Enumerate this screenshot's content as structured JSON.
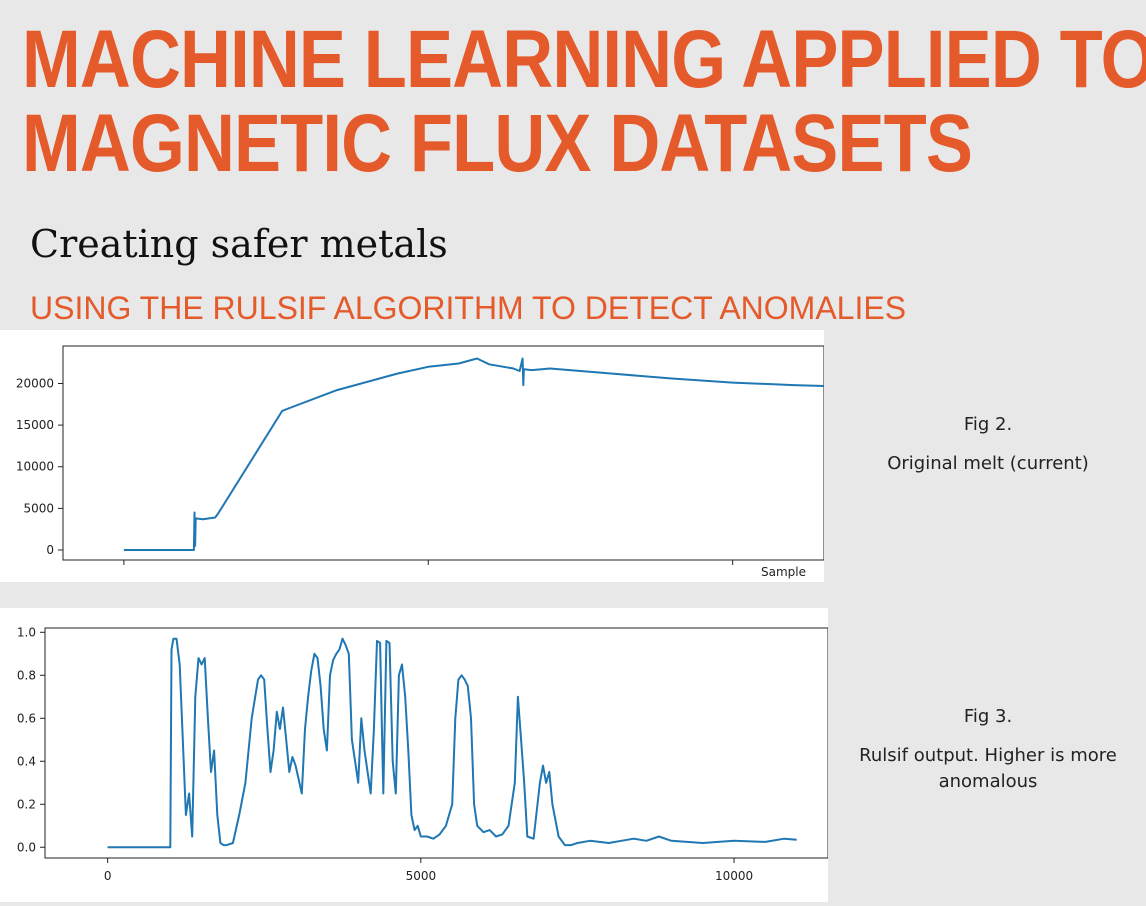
{
  "header": {
    "title_line1": "MACHINE LEARNING APPLIED TO",
    "title_line2": "MAGNETIC FLUX DATASETS",
    "subtitle": "Creating safer metals",
    "section_heading": "USING THE RULSIF ALGORITHM TO DETECT ANOMALIES"
  },
  "figures": {
    "fig2": {
      "label": "Fig 2.",
      "caption": "Original melt (current)"
    },
    "fig3": {
      "label": "Fig 3.",
      "caption": "Rulsif output. Higher is more anomalous"
    }
  },
  "colors": {
    "accent": "#e55a2b",
    "series": "#1f77b4"
  },
  "chart_data": [
    {
      "type": "line",
      "xlabel": "Sample",
      "ylabel": "",
      "xlim": [
        -1000,
        11500
      ],
      "ylim": [
        -1200,
        24500
      ],
      "yticks": [
        0,
        5000,
        10000,
        15000,
        20000
      ],
      "yticklabels": [
        "0",
        "5000",
        "10000",
        "15000",
        "20000"
      ],
      "xticks": [
        0,
        5000,
        10000
      ],
      "series": [
        {
          "x": [
            0,
            1100,
            1150,
            1160,
            1170,
            1180,
            1300,
            1500,
            1550,
            2600,
            2700,
            3500,
            4500,
            5000,
            5500,
            5800,
            6000,
            6400,
            6500,
            6550,
            6560,
            6570,
            6700,
            7000,
            8000,
            9000,
            10000,
            11000,
            11500
          ],
          "y": [
            0,
            0,
            0,
            4500,
            500,
            3800,
            3700,
            3900,
            4400,
            16700,
            17000,
            19200,
            21200,
            22000,
            22400,
            23000,
            22300,
            21800,
            21500,
            23000,
            19800,
            21700,
            21600,
            21800,
            21200,
            20600,
            20100,
            19800,
            19700
          ]
        }
      ]
    },
    {
      "type": "line",
      "xlabel": "",
      "ylabel": "",
      "xlim": [
        -1000,
        11500
      ],
      "ylim": [
        -0.05,
        1.02
      ],
      "yticks": [
        0,
        0.2,
        0.4,
        0.6,
        0.8,
        1.0
      ],
      "yticklabels": [
        "0.0",
        "0.2",
        "0.4",
        "0.6",
        "0.8",
        "1.0"
      ],
      "xticks": [
        0,
        5000,
        10000
      ],
      "xticklabels": [
        "0",
        "5000",
        "10000"
      ],
      "series": [
        {
          "x": [
            0,
            1000,
            1020,
            1050,
            1100,
            1150,
            1200,
            1250,
            1300,
            1350,
            1400,
            1450,
            1500,
            1550,
            1600,
            1650,
            1700,
            1750,
            1800,
            1850,
            1900,
            2000,
            2100,
            2200,
            2300,
            2400,
            2450,
            2500,
            2550,
            2600,
            2650,
            2700,
            2750,
            2800,
            2850,
            2900,
            2950,
            3000,
            3100,
            3150,
            3200,
            3250,
            3300,
            3350,
            3400,
            3450,
            3500,
            3550,
            3600,
            3650,
            3700,
            3750,
            3800,
            3850,
            3900,
            3950,
            4000,
            4050,
            4100,
            4150,
            4200,
            4250,
            4300,
            4350,
            4400,
            4450,
            4500,
            4550,
            4600,
            4650,
            4700,
            4750,
            4800,
            4850,
            4900,
            4950,
            5000,
            5100,
            5200,
            5300,
            5400,
            5500,
            5550,
            5600,
            5650,
            5700,
            5750,
            5800,
            5850,
            5900,
            6000,
            6100,
            6200,
            6300,
            6400,
            6500,
            6550,
            6600,
            6650,
            6700,
            6800,
            6900,
            6950,
            7000,
            7050,
            7100,
            7200,
            7300,
            7400,
            7500,
            7700,
            8000,
            8200,
            8400,
            8600,
            8800,
            9000,
            9500,
            10000,
            10500,
            10800,
            11000
          ],
          "y": [
            0,
            0,
            0.92,
            0.97,
            0.97,
            0.85,
            0.5,
            0.15,
            0.25,
            0.05,
            0.7,
            0.88,
            0.85,
            0.88,
            0.6,
            0.35,
            0.45,
            0.15,
            0.02,
            0.01,
            0.01,
            0.02,
            0.15,
            0.3,
            0.6,
            0.78,
            0.8,
            0.78,
            0.55,
            0.35,
            0.45,
            0.63,
            0.55,
            0.65,
            0.5,
            0.35,
            0.42,
            0.38,
            0.25,
            0.55,
            0.7,
            0.82,
            0.9,
            0.88,
            0.75,
            0.55,
            0.45,
            0.8,
            0.87,
            0.9,
            0.92,
            0.97,
            0.94,
            0.9,
            0.5,
            0.4,
            0.3,
            0.6,
            0.45,
            0.35,
            0.25,
            0.55,
            0.96,
            0.95,
            0.25,
            0.96,
            0.95,
            0.4,
            0.25,
            0.8,
            0.85,
            0.7,
            0.45,
            0.15,
            0.08,
            0.1,
            0.05,
            0.05,
            0.04,
            0.06,
            0.1,
            0.2,
            0.6,
            0.78,
            0.8,
            0.78,
            0.75,
            0.6,
            0.2,
            0.1,
            0.07,
            0.08,
            0.05,
            0.06,
            0.1,
            0.3,
            0.7,
            0.5,
            0.3,
            0.05,
            0.04,
            0.3,
            0.38,
            0.3,
            0.35,
            0.2,
            0.05,
            0.01,
            0.01,
            0.02,
            0.03,
            0.02,
            0.03,
            0.04,
            0.03,
            0.05,
            0.03,
            0.02,
            0.03,
            0.025,
            0.04,
            0.035
          ]
        }
      ]
    }
  ]
}
